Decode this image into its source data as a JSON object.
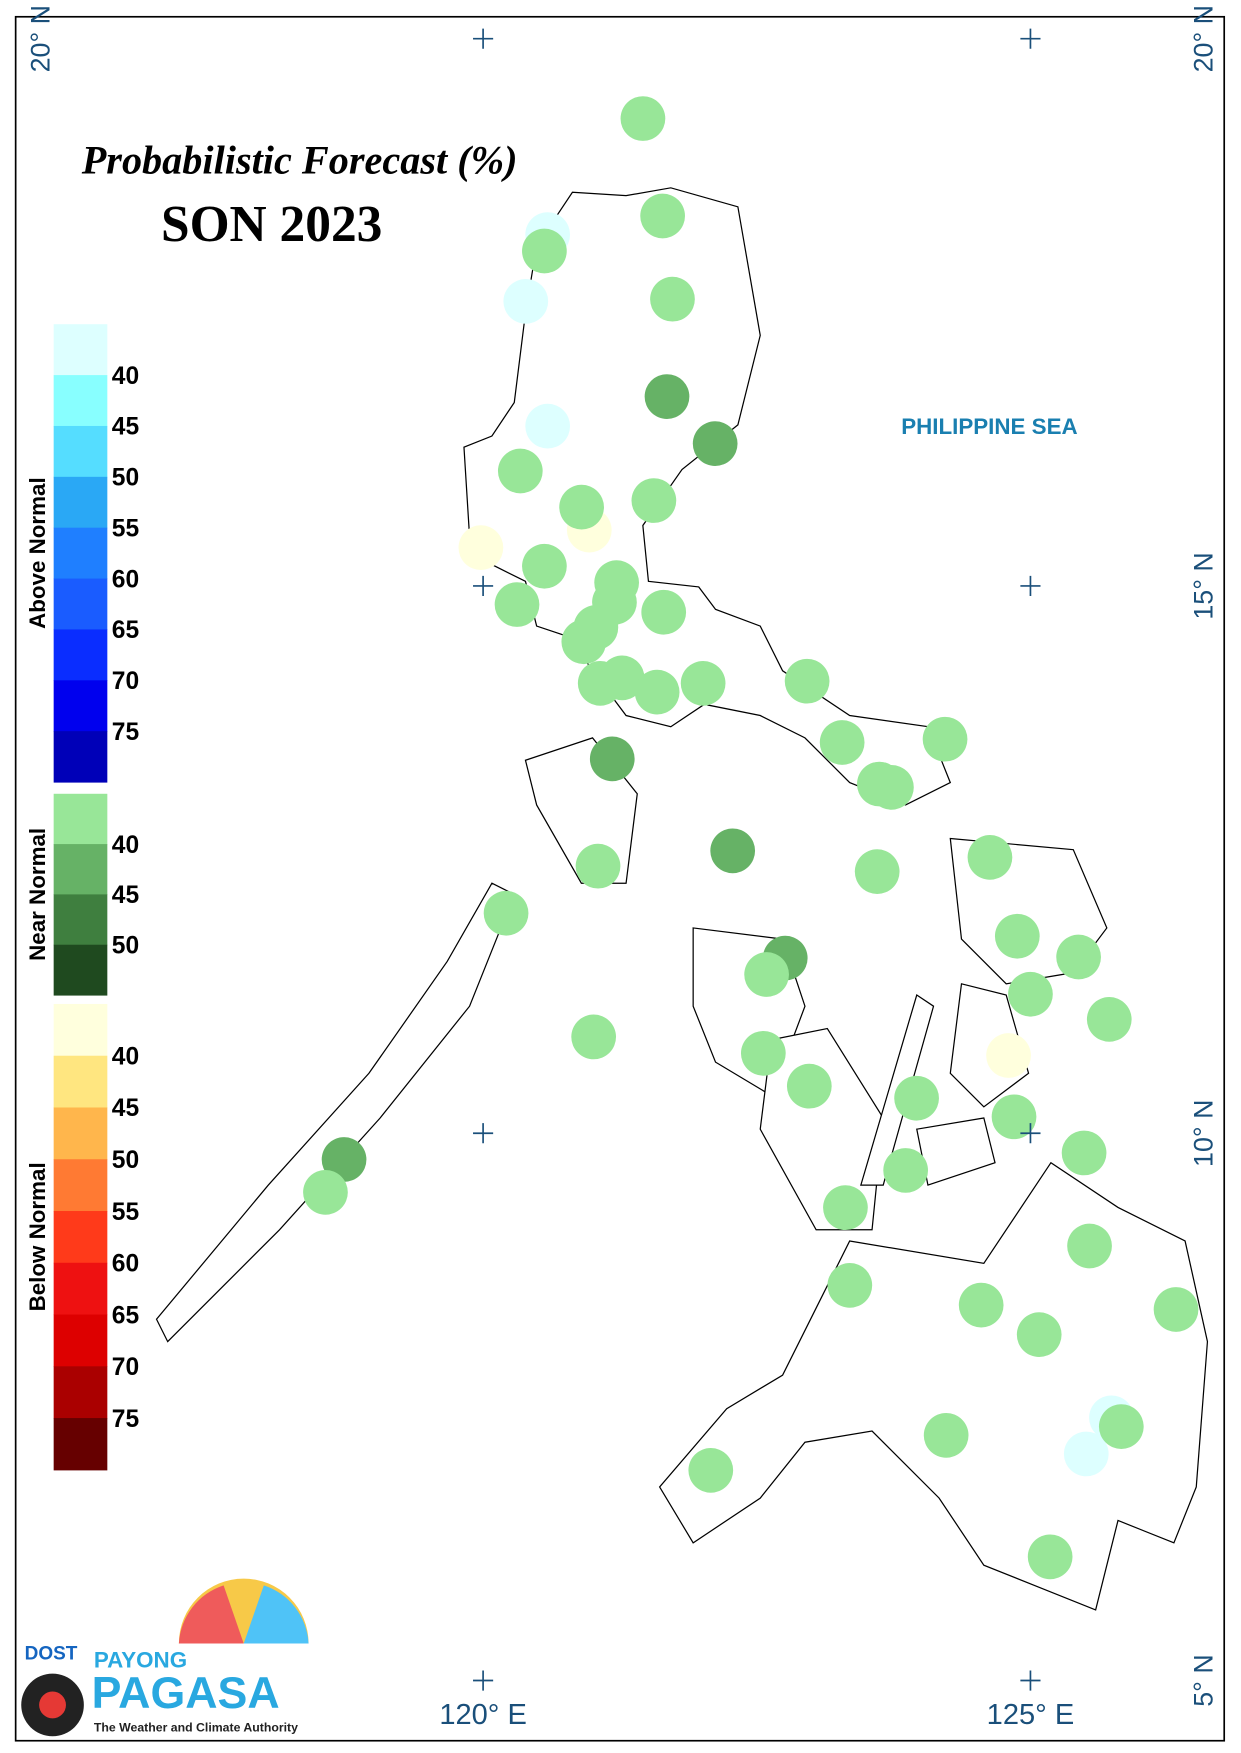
{
  "chart_data": {
    "type": "map",
    "title": "Probabilistic Forecast (%)",
    "subtitle": "SON 2023",
    "annotation": "PHILIPPINE SEA",
    "xlim": [
      115.73,
      126.77
    ],
    "ylim": [
      4.45,
      20.2
    ],
    "xticks": [
      {
        "value": 120,
        "label": "120° E"
      },
      {
        "value": 125,
        "label": "125° E"
      }
    ],
    "yticks": [
      {
        "value": 20,
        "label": "20° N"
      },
      {
        "value": 15,
        "label": "15° N"
      },
      {
        "value": 10,
        "label": "10° N"
      },
      {
        "value": 5,
        "label": "5° N"
      }
    ],
    "legend": {
      "groups": [
        {
          "label": "Above Normal",
          "ticks": [
            40,
            45,
            50,
            55,
            60,
            65,
            70,
            75
          ],
          "colors": [
            "#ddffff",
            "#88ffff",
            "#55ddff",
            "#2aa8f5",
            "#1f7fff",
            "#1a5cff",
            "#0a2dff",
            "#0000ee",
            "#0000b8"
          ],
          "points": [
            {
              "lon": 120.59,
              "lat": 18.21,
              "value": 38
            },
            {
              "lon": 120.39,
              "lat": 17.6,
              "value": 38
            },
            {
              "lon": 120.59,
              "lat": 16.46,
              "value": 38
            },
            {
              "lon": 125.74,
              "lat": 7.4,
              "value": 38
            },
            {
              "lon": 125.51,
              "lat": 7.07,
              "value": 38
            }
          ]
        },
        {
          "label": "Near Normal",
          "ticks": [
            40,
            45,
            50
          ],
          "colors": [
            "#98e698",
            "#66b266",
            "#3f7f3f",
            "#1f4a1f"
          ],
          "points": [
            {
              "lon": 121.46,
              "lat": 19.27,
              "value": 38
            },
            {
              "lon": 121.64,
              "lat": 18.38,
              "value": 38
            },
            {
              "lon": 120.56,
              "lat": 18.06,
              "value": 38
            },
            {
              "lon": 121.73,
              "lat": 17.62,
              "value": 38
            },
            {
              "lon": 121.68,
              "lat": 16.73,
              "value": 43
            },
            {
              "lon": 122.12,
              "lat": 16.3,
              "value": 43
            },
            {
              "lon": 120.34,
              "lat": 16.05,
              "value": 38
            },
            {
              "lon": 120.9,
              "lat": 15.72,
              "value": 38
            },
            {
              "lon": 121.56,
              "lat": 15.78,
              "value": 38
            },
            {
              "lon": 120.56,
              "lat": 15.18,
              "value": 38
            },
            {
              "lon": 121.22,
              "lat": 15.03,
              "value": 38
            },
            {
              "lon": 121.2,
              "lat": 14.85,
              "value": 38
            },
            {
              "lon": 120.31,
              "lat": 14.83,
              "value": 38
            },
            {
              "lon": 121.65,
              "lat": 14.76,
              "value": 38
            },
            {
              "lon": 121.03,
              "lat": 14.62,
              "value": 38
            },
            {
              "lon": 120.92,
              "lat": 14.49,
              "value": 38
            },
            {
              "lon": 121.07,
              "lat": 14.11,
              "value": 38
            },
            {
              "lon": 121.27,
              "lat": 14.16,
              "value": 38
            },
            {
              "lon": 121.59,
              "lat": 14.03,
              "value": 38
            },
            {
              "lon": 122.01,
              "lat": 14.11,
              "value": 38
            },
            {
              "lon": 122.96,
              "lat": 14.13,
              "value": 38
            },
            {
              "lon": 123.28,
              "lat": 13.57,
              "value": 38
            },
            {
              "lon": 124.22,
              "lat": 13.6,
              "value": 38
            },
            {
              "lon": 121.18,
              "lat": 13.42,
              "value": 43
            },
            {
              "lon": 123.62,
              "lat": 13.19,
              "value": 38
            },
            {
              "lon": 123.73,
              "lat": 13.16,
              "value": 38
            },
            {
              "lon": 122.28,
              "lat": 12.58,
              "value": 43
            },
            {
              "lon": 121.05,
              "lat": 12.44,
              "value": 38
            },
            {
              "lon": 123.6,
              "lat": 12.39,
              "value": 38
            },
            {
              "lon": 124.63,
              "lat": 12.52,
              "value": 38
            },
            {
              "lon": 120.21,
              "lat": 12.01,
              "value": 38
            },
            {
              "lon": 122.76,
              "lat": 11.6,
              "value": 43
            },
            {
              "lon": 124.88,
              "lat": 11.8,
              "value": 38
            },
            {
              "lon": 125.44,
              "lat": 11.61,
              "value": 38
            },
            {
              "lon": 122.59,
              "lat": 11.45,
              "value": 38
            },
            {
              "lon": 125.0,
              "lat": 11.27,
              "value": 38
            },
            {
              "lon": 125.72,
              "lat": 11.04,
              "value": 38
            },
            {
              "lon": 121.01,
              "lat": 10.88,
              "value": 38
            },
            {
              "lon": 122.56,
              "lat": 10.73,
              "value": 38
            },
            {
              "lon": 122.98,
              "lat": 10.43,
              "value": 38
            },
            {
              "lon": 123.96,
              "lat": 10.32,
              "value": 38
            },
            {
              "lon": 124.85,
              "lat": 10.15,
              "value": 38
            },
            {
              "lon": 118.73,
              "lat": 9.76,
              "value": 43
            },
            {
              "lon": 125.49,
              "lat": 9.82,
              "value": 38
            },
            {
              "lon": 123.86,
              "lat": 9.66,
              "value": 38
            },
            {
              "lon": 118.56,
              "lat": 9.46,
              "value": 38
            },
            {
              "lon": 123.31,
              "lat": 9.32,
              "value": 38
            },
            {
              "lon": 125.54,
              "lat": 8.97,
              "value": 38
            },
            {
              "lon": 123.35,
              "lat": 8.61,
              "value": 38
            },
            {
              "lon": 124.55,
              "lat": 8.43,
              "value": 38
            },
            {
              "lon": 126.33,
              "lat": 8.39,
              "value": 38
            },
            {
              "lon": 125.08,
              "lat": 8.16,
              "value": 38
            },
            {
              "lon": 124.23,
              "lat": 7.24,
              "value": 38
            },
            {
              "lon": 125.83,
              "lat": 7.32,
              "value": 38
            },
            {
              "lon": 122.08,
              "lat": 6.92,
              "value": 38
            },
            {
              "lon": 125.18,
              "lat": 6.13,
              "value": 38
            }
          ]
        },
        {
          "label": "Below Normal",
          "ticks": [
            40,
            45,
            50,
            55,
            60,
            65,
            70,
            75
          ],
          "colors": [
            "#ffffdd",
            "#ffe680",
            "#ffb64c",
            "#ff7a33",
            "#ff3a1a",
            "#ee1111",
            "#dd0000",
            "#aa0000",
            "#660000"
          ],
          "points": [
            {
              "lon": 120.97,
              "lat": 15.51,
              "value": 38
            },
            {
              "lon": 119.98,
              "lat": 15.35,
              "value": 38
            },
            {
              "lon": 124.8,
              "lat": 10.71,
              "value": 38
            }
          ]
        }
      ]
    },
    "logo": {
      "agency": "DOST",
      "name_top": "PAYONG",
      "name": "PAGASA",
      "tagline": "The Weather and Climate Authority"
    }
  }
}
